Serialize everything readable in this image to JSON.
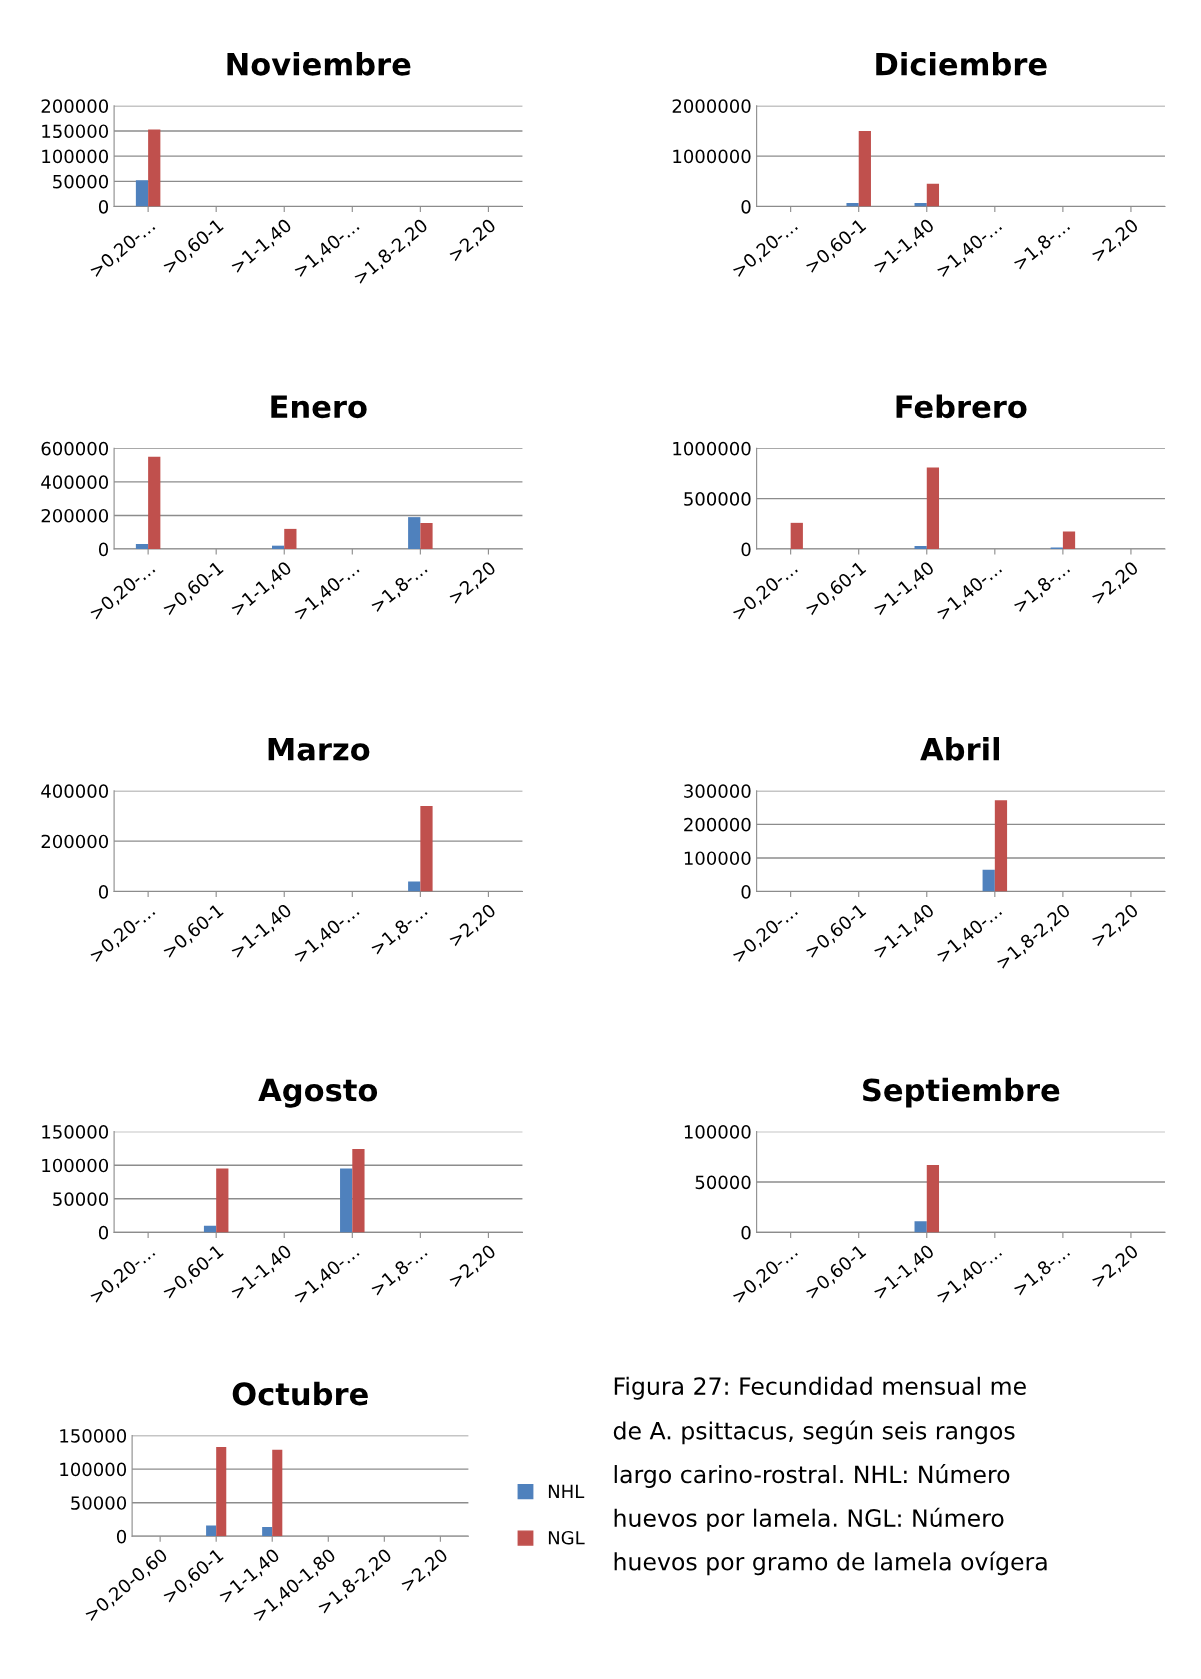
{
  "chart_data": [
    {
      "type": "bar",
      "title": "Noviembre",
      "categories": [
        ">0,20-…",
        ">0,60-1",
        ">1-1,40",
        ">1,40-…",
        ">1,8-2,20",
        ">2,20"
      ],
      "ylim": [
        0,
        200000
      ],
      "yticks": [
        0,
        50000,
        100000,
        150000,
        200000
      ],
      "grid": "y",
      "legend": false,
      "series": [
        {
          "color": "#4f81bd",
          "values": [
            52000,
            0,
            0,
            0,
            0,
            0
          ]
        },
        {
          "color": "#c0504d",
          "values": [
            153000,
            0,
            0,
            0,
            0,
            0
          ]
        }
      ]
    },
    {
      "type": "bar",
      "title": "Diciembre",
      "categories": [
        ">0,20-…",
        ">0,60-1",
        ">1-1,40",
        ">1,40-…",
        ">1,8-…",
        ">2,20"
      ],
      "ylim": [
        0,
        2000000
      ],
      "yticks": [
        0,
        1000000,
        2000000
      ],
      "grid": "y",
      "legend": false,
      "series": [
        {
          "color": "#4f81bd",
          "values": [
            0,
            70000,
            70000,
            0,
            0,
            0
          ]
        },
        {
          "color": "#c0504d",
          "values": [
            0,
            1500000,
            450000,
            0,
            0,
            0
          ]
        }
      ]
    },
    {
      "type": "bar",
      "title": "Enero",
      "categories": [
        ">0,20-…",
        ">0,60-1",
        ">1-1,40",
        ">1,40-…",
        ">1,8-…",
        ">2,20"
      ],
      "ylim": [
        0,
        600000
      ],
      "yticks": [
        0,
        200000,
        400000,
        600000
      ],
      "grid": "y",
      "legend": false,
      "series": [
        {
          "color": "#4f81bd",
          "values": [
            30000,
            0,
            20000,
            0,
            190000,
            0
          ]
        },
        {
          "color": "#c0504d",
          "values": [
            550000,
            0,
            120000,
            0,
            155000,
            0
          ]
        }
      ]
    },
    {
      "type": "bar",
      "title": "Febrero",
      "categories": [
        ">0,20-…",
        ">0,60-1",
        ">1-1,40",
        ">1,40-…",
        ">1,8-…",
        ">2,20"
      ],
      "ylim": [
        0,
        1000000
      ],
      "yticks": [
        0,
        500000,
        1000000
      ],
      "grid": "y",
      "legend": false,
      "series": [
        {
          "color": "#4f81bd",
          "values": [
            0,
            0,
            30000,
            0,
            15000,
            0
          ]
        },
        {
          "color": "#c0504d",
          "values": [
            260000,
            0,
            810000,
            0,
            175000,
            0
          ]
        }
      ]
    },
    {
      "type": "bar",
      "title": "Marzo",
      "categories": [
        ">0,20-…",
        ">0,60-1",
        ">1-1,40",
        ">1,40-…",
        ">1,8-…",
        ">2,20"
      ],
      "ylim": [
        0,
        400000
      ],
      "yticks": [
        0,
        200000,
        400000
      ],
      "grid": "y",
      "legend": false,
      "series": [
        {
          "color": "#4f81bd",
          "values": [
            0,
            0,
            0,
            0,
            40000,
            0
          ]
        },
        {
          "color": "#c0504d",
          "values": [
            0,
            0,
            0,
            0,
            340000,
            0
          ]
        }
      ]
    },
    {
      "type": "bar",
      "title": "Abril",
      "categories": [
        ">0,20-…",
        ">0,60-1",
        ">1-1,40",
        ">1,40-…",
        ">1,8-2,20",
        ">2,20"
      ],
      "ylim": [
        0,
        300000
      ],
      "yticks": [
        0,
        100000,
        200000,
        300000
      ],
      "grid": "y",
      "legend": false,
      "series": [
        {
          "color": "#4f81bd",
          "values": [
            0,
            0,
            0,
            65000,
            0,
            0
          ]
        },
        {
          "color": "#c0504d",
          "values": [
            0,
            0,
            0,
            272000,
            0,
            0
          ]
        }
      ]
    },
    {
      "type": "bar",
      "title": "Agosto",
      "categories": [
        ">0,20-…",
        ">0,60-1",
        ">1-1,40",
        ">1,40-…",
        ">1,8-…",
        ">2,20"
      ],
      "ylim": [
        0,
        150000
      ],
      "yticks": [
        0,
        50000,
        100000,
        150000
      ],
      "grid": "y",
      "legend": false,
      "series": [
        {
          "color": "#4f81bd",
          "values": [
            0,
            10000,
            0,
            95000,
            0,
            0
          ]
        },
        {
          "color": "#c0504d",
          "values": [
            0,
            95000,
            0,
            124000,
            0,
            0
          ]
        }
      ]
    },
    {
      "type": "bar",
      "title": "Septiembre",
      "categories": [
        ">0,20-…",
        ">0,60-1",
        ">1-1,40",
        ">1,40-…",
        ">1,8-…",
        ">2,20"
      ],
      "ylim": [
        0,
        100000
      ],
      "yticks": [
        0,
        50000,
        100000
      ],
      "grid": "y",
      "legend": false,
      "series": [
        {
          "color": "#4f81bd",
          "values": [
            0,
            0,
            11000,
            0,
            0,
            0
          ]
        },
        {
          "color": "#c0504d",
          "values": [
            0,
            0,
            67000,
            0,
            0,
            0
          ]
        }
      ]
    },
    {
      "type": "bar",
      "title": "Octubre",
      "categories": [
        ">0,20-0,60",
        ">0,60-1",
        ">1-1,40",
        ">1,40-1,80",
        ">1,8-2,20",
        ">2,20"
      ],
      "ylim": [
        0,
        150000
      ],
      "yticks": [
        0,
        50000,
        100000,
        150000
      ],
      "grid": "y",
      "legend": "right",
      "series": [
        {
          "name": "NHL",
          "color": "#4f81bd",
          "values": [
            0,
            16000,
            14000,
            0,
            0,
            0
          ]
        },
        {
          "name": "NGL",
          "color": "#c0504d",
          "values": [
            0,
            133000,
            129000,
            0,
            0,
            0
          ]
        }
      ]
    },
    {
      "type": "other",
      "annotations": [
        "Figura 27: Fecundidad mensual me",
        "de A. psittacus, según seis rangos",
        "largo carino-rostral. NHL: Número",
        "huevos por lamela. NGL: Número",
        "huevos por gramo de lamela ovígera"
      ]
    }
  ]
}
